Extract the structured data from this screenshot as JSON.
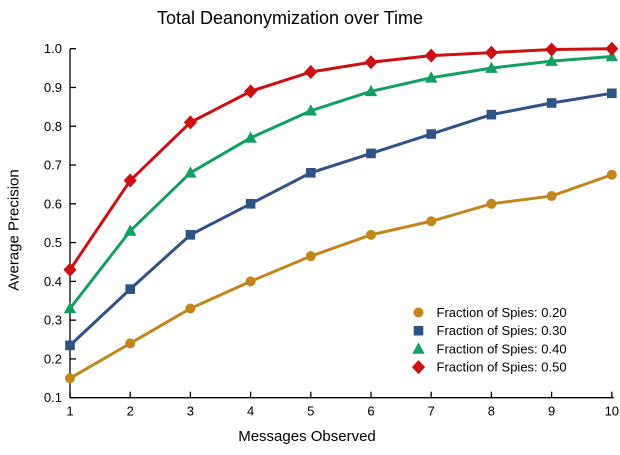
{
  "chart_data": {
    "type": "line",
    "title": "Total Deanonymization over Time",
    "xlabel": "Messages Observed",
    "ylabel": "Average Precision",
    "xlim": [
      1,
      10
    ],
    "ylim": [
      0.1,
      1.0
    ],
    "xtick_values": [
      1,
      2,
      3,
      4,
      5,
      6,
      7,
      8,
      9,
      10
    ],
    "xtick_labels": [
      "1",
      "2",
      "3",
      "4",
      "5",
      "6",
      "7",
      "8",
      "9",
      "10"
    ],
    "ytick_values": [
      1.0,
      0.9,
      0.8,
      0.7,
      0.6,
      0.5,
      0.4,
      0.3,
      0.2,
      0.1
    ],
    "ytick_labels": [
      "1.0",
      "0.9",
      "0.8",
      "0.7",
      "0.6",
      "0.5",
      "0.4",
      "0.3",
      "0.2",
      "0.1"
    ],
    "grid": false,
    "legend_position": "lower right",
    "legend_frame": false,
    "x": [
      1,
      2,
      3,
      4,
      5,
      6,
      7,
      8,
      9,
      10
    ],
    "series": [
      {
        "name": "Fraction of Spies: 0.20",
        "color": "#C3861C",
        "marker": "circle",
        "values": [
          0.15,
          0.24,
          0.33,
          0.4,
          0.465,
          0.52,
          0.555,
          0.6,
          0.62,
          0.675
        ]
      },
      {
        "name": "Fraction of Spies: 0.30",
        "color": "#2E5384",
        "marker": "square",
        "values": [
          0.235,
          0.38,
          0.52,
          0.6,
          0.68,
          0.73,
          0.78,
          0.83,
          0.86,
          0.885
        ]
      },
      {
        "name": "Fraction of Spies: 0.40",
        "color": "#11A061",
        "marker": "triangle",
        "values": [
          0.33,
          0.53,
          0.68,
          0.77,
          0.84,
          0.89,
          0.925,
          0.95,
          0.968,
          0.98
        ]
      },
      {
        "name": "Fraction of Spies: 0.50",
        "color": "#CB1111",
        "marker": "diamond",
        "values": [
          0.43,
          0.66,
          0.81,
          0.89,
          0.94,
          0.965,
          0.982,
          0.99,
          0.998,
          1.0
        ]
      }
    ]
  }
}
